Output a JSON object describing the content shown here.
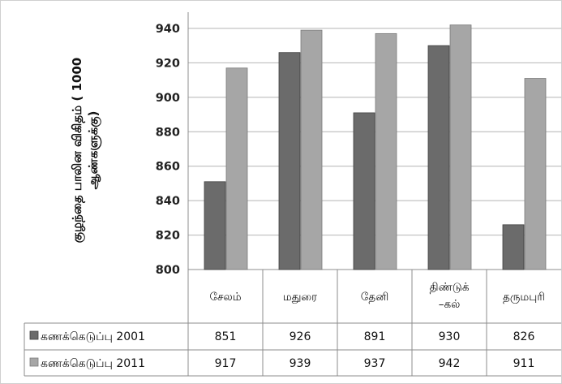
{
  "chart_data": {
    "type": "bar",
    "ylabel": "குழந்தை பாலின விகிதம் ( 1000 ஆண்களுக்கு)",
    "ylim": [
      800,
      950
    ],
    "yticks": [
      800,
      820,
      840,
      860,
      880,
      900,
      920,
      940
    ],
    "grid": true,
    "legend": "data-table",
    "categories": [
      "சேலம்",
      "மதுரை",
      "தேனி",
      "திண்டுக்-கல்",
      "தருமபுரி"
    ],
    "category_lines": [
      [
        "சேலம்"
      ],
      [
        "மதுரை"
      ],
      [
        "தேனி"
      ],
      [
        "திண்டுக்",
        "–கல்"
      ],
      [
        "தருமபுரி"
      ]
    ],
    "series": [
      {
        "name": "கணக்கெடுப்பு 2001",
        "values": [
          851,
          926,
          891,
          930,
          826
        ],
        "color": "#6b6b6b"
      },
      {
        "name": "கணக்கெடுப்பு 2011",
        "values": [
          917,
          939,
          937,
          942,
          911
        ],
        "color": "#a6a6a6"
      }
    ]
  }
}
